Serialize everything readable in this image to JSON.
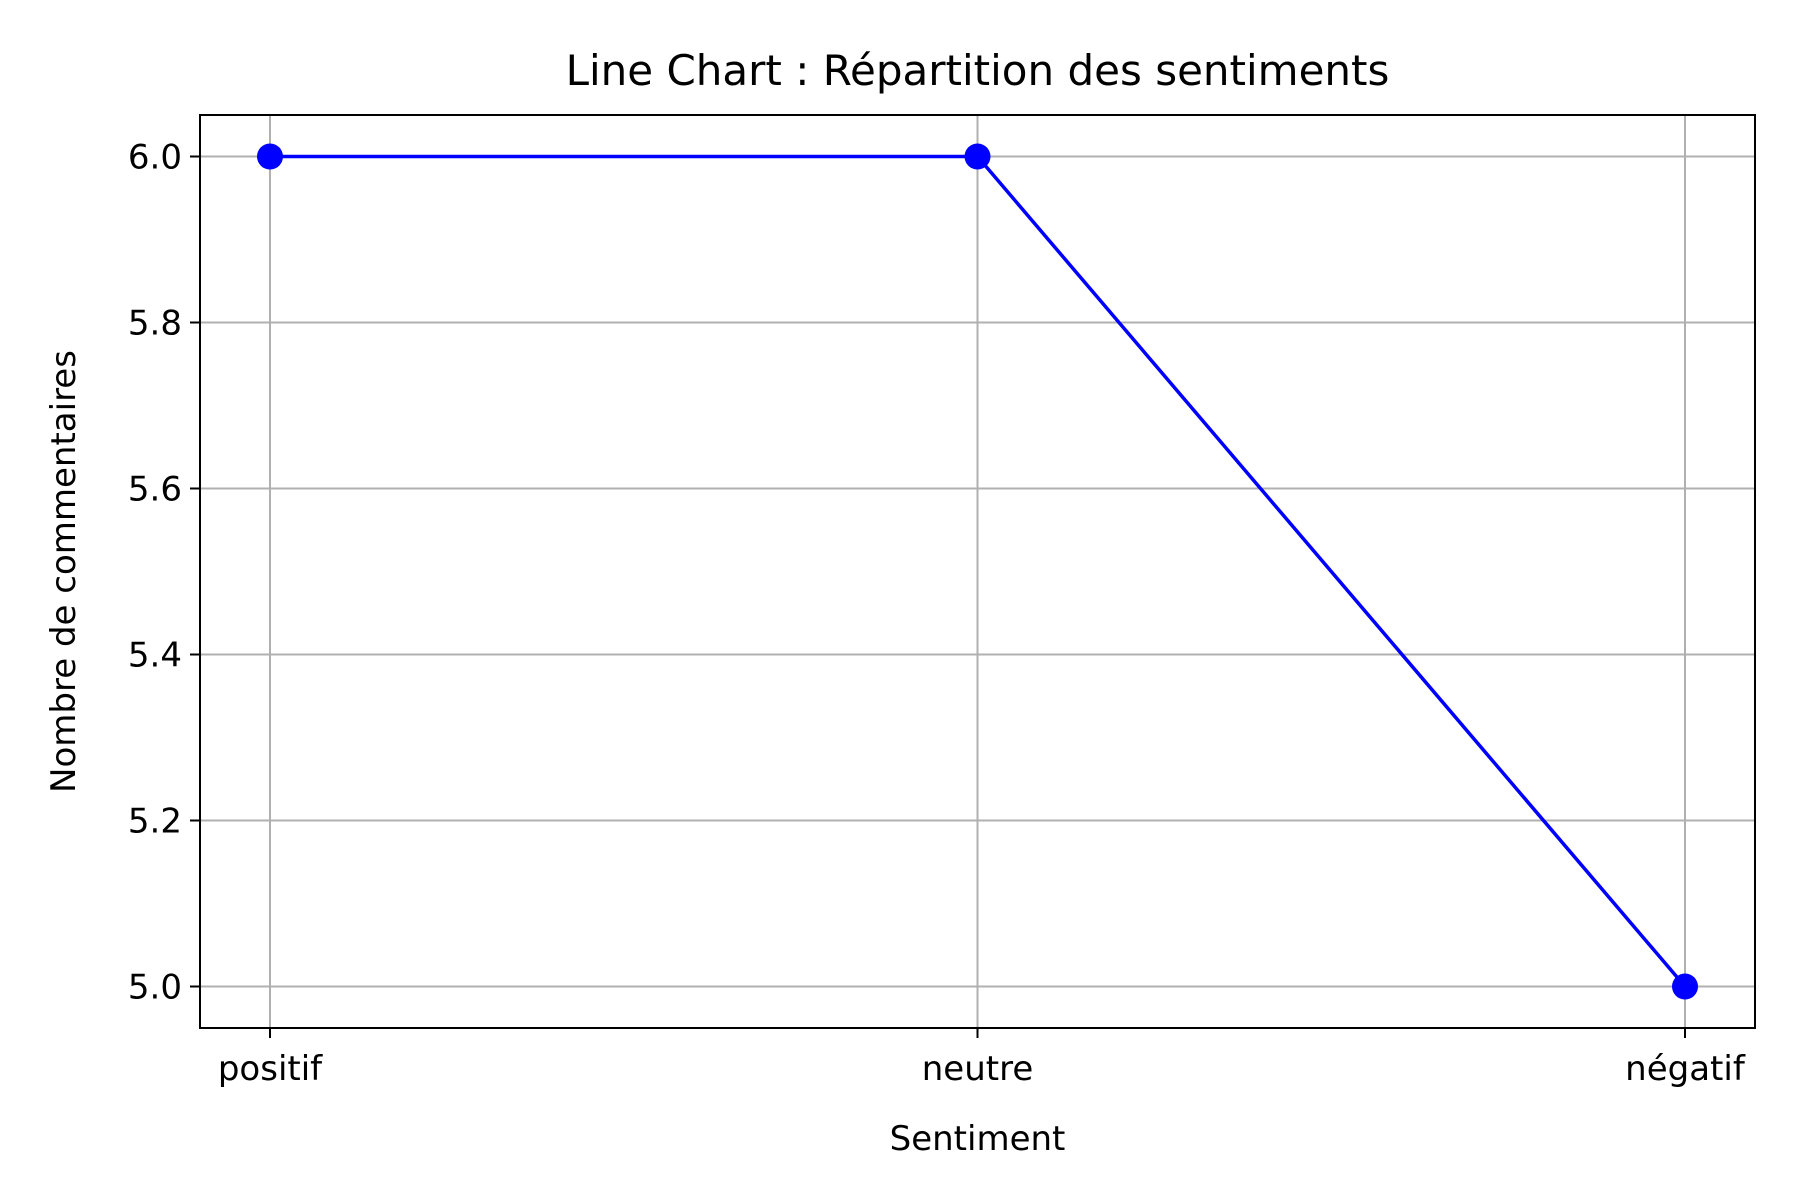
{
  "chart_data": {
    "type": "line",
    "title": "Line Chart : Répartition des sentiments",
    "xlabel": "Sentiment",
    "ylabel": "Nombre de commentaires",
    "categories": [
      "positif",
      "neutre",
      "négatif"
    ],
    "series": [
      {
        "values": [
          6,
          6,
          5
        ],
        "color": "#0000ff",
        "marker": "circle"
      }
    ],
    "ylim": [
      4.95,
      6.05
    ],
    "yticks": [
      5.0,
      5.2,
      5.4,
      5.6,
      5.8,
      6.0
    ],
    "ytick_labels": [
      "5.0",
      "5.2",
      "5.4",
      "5.6",
      "5.8",
      "6.0"
    ],
    "grid": true,
    "legend": "none"
  }
}
